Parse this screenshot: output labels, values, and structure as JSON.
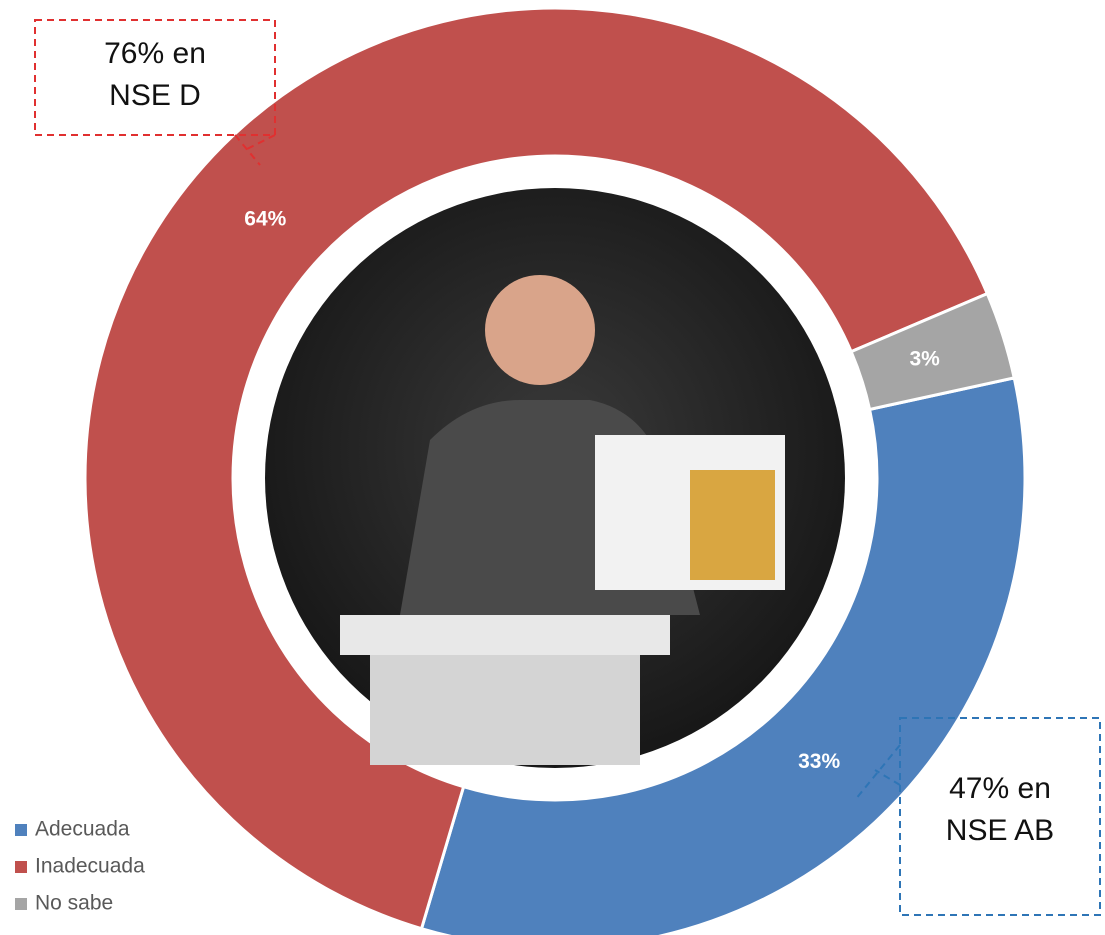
{
  "chart_data": {
    "type": "donut",
    "categories": [
      "Adecuada",
      "Inadecuada",
      "No sabe"
    ],
    "values": [
      33,
      64,
      3
    ],
    "value_labels": [
      "33%",
      "64%",
      "3%"
    ],
    "colors": [
      "#4f81bd",
      "#c0504d",
      "#a5a5a5"
    ],
    "legend": "bottom-left",
    "annotations": [
      {
        "lines": [
          "76% en",
          "NSE D"
        ],
        "color": "#e03030"
      },
      {
        "lines": [
          "47% en",
          "NSE AB"
        ],
        "color": "#2e75b6"
      }
    ]
  }
}
